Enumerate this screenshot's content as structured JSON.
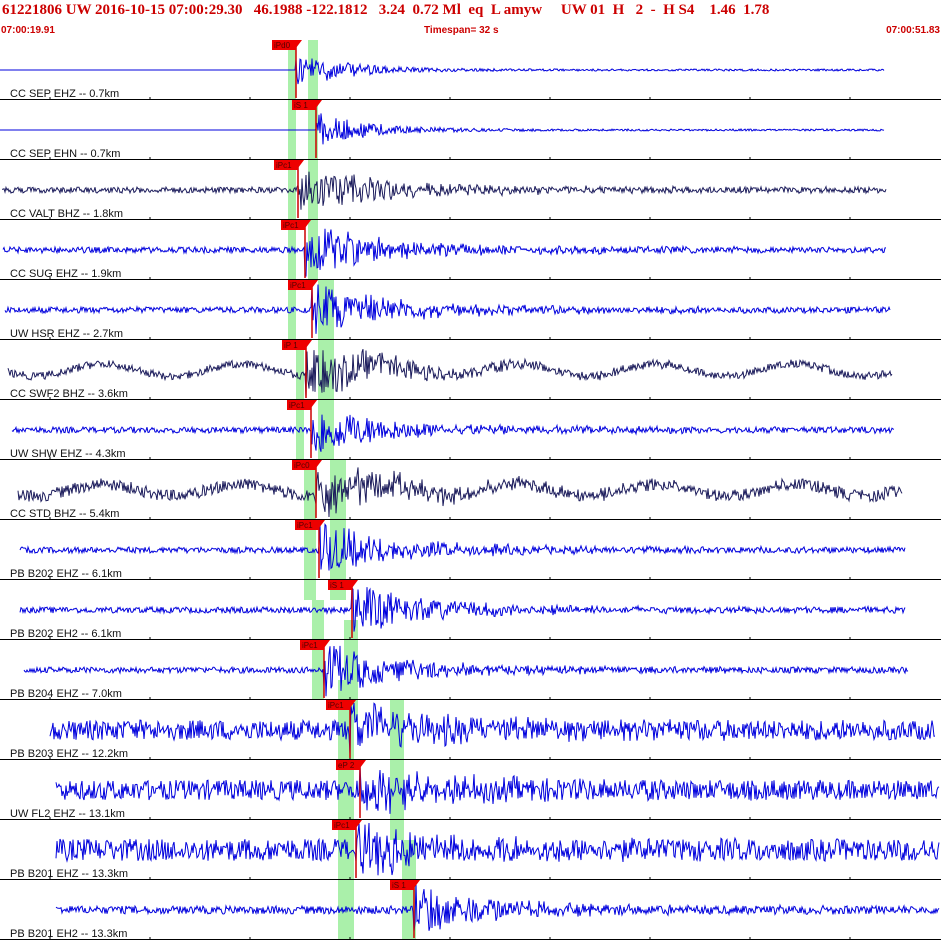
{
  "header": {
    "title": "61221806 UW 2016-10-15 07:00:29.30   46.1988 -122.1812   3.24  0.72 Ml  eq  L amyw     UW 01  H   2  -  H S4    1.46  1.78",
    "start_time": "07:00:19.91",
    "timespan": "Timespan=  32 s",
    "end_time": "07:00:51.83"
  },
  "colors": {
    "header_text": "#cc0000",
    "trace_blue": "#0000dd",
    "trace_dark": "#1c1c5c",
    "pick_flag": "#ee0000",
    "window_green": "#aaf0aa",
    "divider": "#000000"
  },
  "traces": [
    {
      "label": "CC SEP EHZ -- 0.7km",
      "pick": "iPd0",
      "style": "flat",
      "color": "blue"
    },
    {
      "label": "CC SEP EHN -- 0.7km",
      "pick": "iS 1",
      "style": "flat",
      "color": "blue"
    },
    {
      "label": "CC VALT BHZ -- 1.8km",
      "pick": "iPc1",
      "style": "noisy",
      "color": "dark"
    },
    {
      "label": "CC SUG EHZ -- 1.9km",
      "pick": "iPc1",
      "style": "noisy",
      "color": "blue"
    },
    {
      "label": "UW HSR EHZ -- 2.7km",
      "pick": "iPc1",
      "style": "noisy",
      "color": "blue"
    },
    {
      "label": "CC SWF2 BHZ -- 3.6km",
      "pick": "iP 1",
      "style": "wavy",
      "color": "dark"
    },
    {
      "label": "UW SHW EHZ -- 4.3km",
      "pick": "iPc1",
      "style": "noisy",
      "color": "blue"
    },
    {
      "label": "CC STD BHZ -- 5.4km",
      "pick": "iPc0",
      "style": "wavy",
      "color": "dark"
    },
    {
      "label": "PB B202 EHZ -- 6.1km",
      "pick": "iPc1",
      "style": "noisy",
      "color": "blue"
    },
    {
      "label": "PB B202 EH2 -- 6.1km",
      "pick": "iS 1",
      "style": "noisy",
      "color": "blue"
    },
    {
      "label": "PB B204 EHZ -- 7.0km",
      "pick": "iPc1",
      "style": "noisy",
      "color": "blue"
    },
    {
      "label": "PB B203 EHZ -- 12.2km",
      "pick": "iPc1",
      "style": "loud",
      "color": "blue"
    },
    {
      "label": "UW FL2 EHZ -- 13.1km",
      "pick": "eP 2",
      "style": "loud",
      "color": "blue"
    },
    {
      "label": "PB B201 EHZ -- 13.3km",
      "pick": "iPc1",
      "style": "loud",
      "color": "blue"
    },
    {
      "label": "PB B201 EH2 -- 13.3km",
      "pick": "iS 1",
      "style": "noisy",
      "color": "blue"
    }
  ]
}
